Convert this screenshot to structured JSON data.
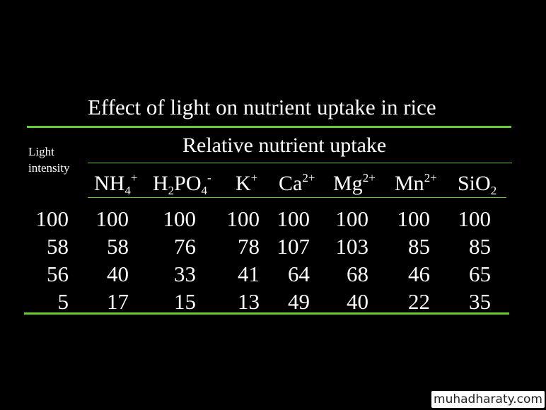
{
  "slide": {
    "title": "Effect of light on nutrient uptake in rice",
    "subtitle": "Relative nutrient uptake",
    "light_label_line1": "Light",
    "light_label_line2": "intensity",
    "watermark": "muhadharaty.com"
  },
  "colors": {
    "background": "#000000",
    "text": "#ffffff",
    "rule": "#66cc33"
  },
  "table": {
    "columns": [
      {
        "base": "NH",
        "sub": "4",
        "sup": "+"
      },
      {
        "base": "H",
        "sub1": "2",
        "mid": "PO",
        "sub": "4",
        "sup": "-"
      },
      {
        "base": "K",
        "sup": "+"
      },
      {
        "base": "Ca",
        "sup": "2+"
      },
      {
        "base": "Mg",
        "sup": "2+"
      },
      {
        "base": "Mn",
        "sup": "2+"
      },
      {
        "base": "SiO",
        "sub": "2"
      }
    ],
    "rows": [
      {
        "light": "100",
        "values": [
          "100",
          "100",
          "100",
          "100",
          "100",
          "100",
          "100"
        ]
      },
      {
        "light": "58",
        "values": [
          "58",
          "76",
          "78",
          "107",
          "103",
          "85",
          "85"
        ]
      },
      {
        "light": "56",
        "values": [
          "40",
          "33",
          "41",
          "64",
          "68",
          "46",
          "65"
        ]
      },
      {
        "light": "5",
        "values": [
          "17",
          "15",
          "13",
          "49",
          "40",
          "22",
          "35"
        ]
      }
    ]
  }
}
